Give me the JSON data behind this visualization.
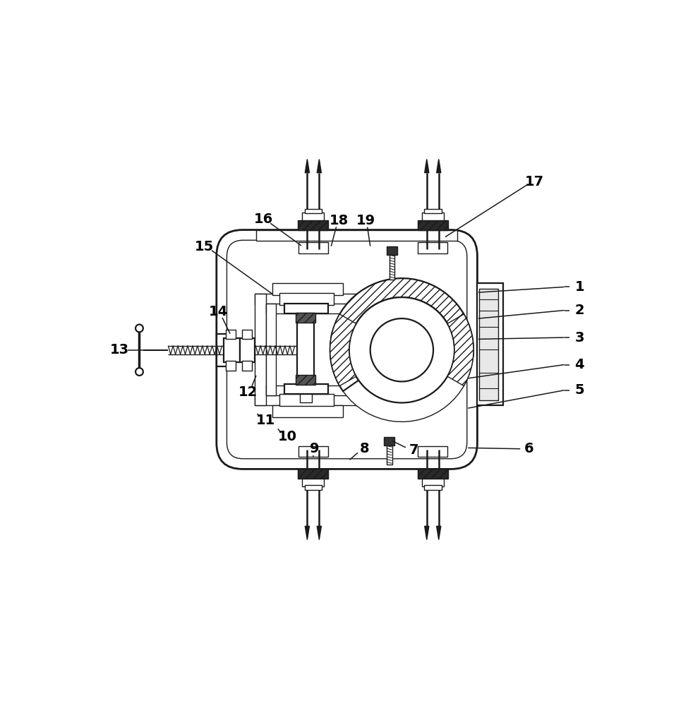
{
  "lc": "#1a1a1a",
  "dark": "#3a3a3a",
  "white": "white",
  "label_fs": 14
}
